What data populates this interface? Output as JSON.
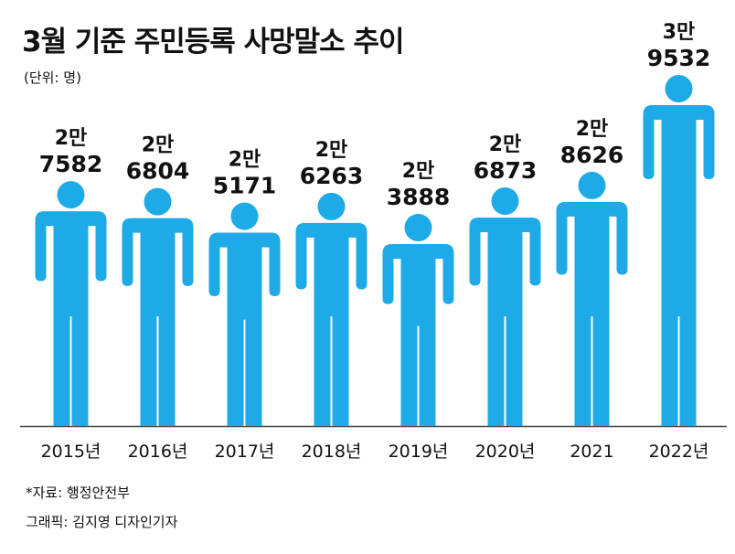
{
  "title": "3월 기준 주민등록 사망말소 추이",
  "unit": "(단위: 명)",
  "source": "*자료: 행정안전부",
  "credit": "그래픽: 김지영 디자인기자",
  "colors": {
    "figure": "#1eaae6",
    "text": "#111111",
    "axis": "#444444"
  },
  "chart_data": {
    "type": "bar",
    "mark": "person-icon",
    "title": "3월 기준 주민등록 사망말소 추이",
    "ylabel": "(단위: 명)",
    "categories": [
      "2015년",
      "2016년",
      "2017년",
      "2018년",
      "2019년",
      "2020년",
      "2021",
      "2022년"
    ],
    "values": [
      27582,
      26804,
      25171,
      26263,
      23888,
      26873,
      28626,
      39532
    ],
    "labels": [
      {
        "man": "2만",
        "num": "7582"
      },
      {
        "man": "2만",
        "num": "6804"
      },
      {
        "man": "2만",
        "num": "5171"
      },
      {
        "man": "2만",
        "num": "6263"
      },
      {
        "man": "2만",
        "num": "3888"
      },
      {
        "man": "2만",
        "num": "6873"
      },
      {
        "man": "2만",
        "num": "8626"
      },
      {
        "man": "3만",
        "num": "9532"
      }
    ],
    "ylim": [
      0,
      39532
    ],
    "grid": false
  }
}
